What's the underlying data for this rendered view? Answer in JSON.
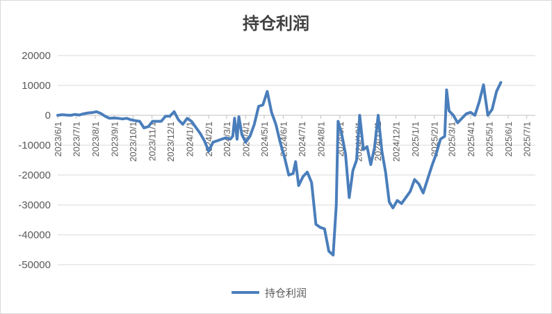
{
  "chart_data": {
    "type": "line",
    "title": "持仓利润",
    "xlabel": "",
    "ylabel": "",
    "ylim": [
      -50000,
      20000
    ],
    "yticks": [
      20000,
      10000,
      0,
      -10000,
      -20000,
      -30000,
      -40000,
      -50000
    ],
    "ytick_labels": [
      "20000",
      "10000",
      "0",
      "-10000",
      "-20000",
      "-30000",
      "-40000",
      "-50000"
    ],
    "xtick_labels": [
      "2023/6/1",
      "2023/7/1",
      "2023/8/1",
      "2023/9/1",
      "2023/10/1",
      "2023/11/1",
      "2023/12/1",
      "2024/1/1",
      "2024/2/1",
      "2024/3/1",
      "2024/4/1",
      "2024/5/1",
      "2024/6/1",
      "2024/7/1",
      "2024/8/1",
      "2024/9/1",
      "2024/10/1",
      "2024/11/1",
      "2024/12/1",
      "2025/1/1",
      "2025/2/1",
      "2025/3/1",
      "2025/4/1",
      "2025/5/1",
      "2025/6/1",
      "2025/7/1"
    ],
    "x_range": [
      "2023/6/1",
      "2025/7/15"
    ],
    "grid": "horizontal",
    "legend_position": "bottom",
    "series": [
      {
        "name": "持仓利润",
        "color": "#4a7ebb",
        "points": [
          [
            "2023/6/1",
            0
          ],
          [
            "2023/6/8",
            200
          ],
          [
            "2023/6/15",
            100
          ],
          [
            "2023/6/22",
            0
          ],
          [
            "2023/6/29",
            300
          ],
          [
            "2023/7/6",
            100
          ],
          [
            "2023/7/13",
            500
          ],
          [
            "2023/7/20",
            800
          ],
          [
            "2023/7/27",
            900
          ],
          [
            "2023/8/3",
            1200
          ],
          [
            "2023/8/10",
            600
          ],
          [
            "2023/8/17",
            -300
          ],
          [
            "2023/8/24",
            -1000
          ],
          [
            "2023/8/31",
            -900
          ],
          [
            "2023/9/7",
            -1000
          ],
          [
            "2023/9/14",
            -1200
          ],
          [
            "2023/9/21",
            -1000
          ],
          [
            "2023/9/28",
            -1500
          ],
          [
            "2023/10/5",
            -1800
          ],
          [
            "2023/10/12",
            -2000
          ],
          [
            "2023/10/19",
            -4200
          ],
          [
            "2023/10/26",
            -3800
          ],
          [
            "2023/11/2",
            -2000
          ],
          [
            "2023/11/9",
            -2000
          ],
          [
            "2023/11/16",
            -2000
          ],
          [
            "2023/11/23",
            -300
          ],
          [
            "2023/11/30",
            -300
          ],
          [
            "2023/12/7",
            1200
          ],
          [
            "2023/12/14",
            -1500
          ],
          [
            "2023/12/21",
            -3000
          ],
          [
            "2023/12/28",
            -1000
          ],
          [
            "2024/1/4",
            -2000
          ],
          [
            "2024/1/11",
            -4000
          ],
          [
            "2024/1/18",
            -6000
          ],
          [
            "2024/1/25",
            -8500
          ],
          [
            "2024/2/1",
            -12000
          ],
          [
            "2024/2/8",
            -9000
          ],
          [
            "2024/2/15",
            -8500
          ],
          [
            "2024/2/22",
            -8000
          ],
          [
            "2024/2/29",
            -7500
          ],
          [
            "2024/3/7",
            -8000
          ],
          [
            "2024/3/11",
            -7000
          ],
          [
            "2024/3/14",
            -1000
          ],
          [
            "2024/3/18",
            -8000
          ],
          [
            "2024/3/21",
            -500
          ],
          [
            "2024/3/26",
            -6500
          ],
          [
            "2024/4/1",
            -9000
          ],
          [
            "2024/4/8",
            -7000
          ],
          [
            "2024/4/15",
            -3000
          ],
          [
            "2024/4/22",
            3000
          ],
          [
            "2024/4/29",
            3500
          ],
          [
            "2024/5/6",
            8000
          ],
          [
            "2024/5/13",
            1000
          ],
          [
            "2024/5/20",
            -3000
          ],
          [
            "2024/5/27",
            -9000
          ],
          [
            "2024/6/3",
            -14000
          ],
          [
            "2024/6/10",
            -20000
          ],
          [
            "2024/6/17",
            -19500
          ],
          [
            "2024/6/21",
            -15500
          ],
          [
            "2024/6/26",
            -23500
          ],
          [
            "2024/7/3",
            -20500
          ],
          [
            "2024/7/10",
            -19000
          ],
          [
            "2024/7/17",
            -22500
          ],
          [
            "2024/7/24",
            -36500
          ],
          [
            "2024/7/31",
            -37500
          ],
          [
            "2024/8/7",
            -38000
          ],
          [
            "2024/8/14",
            -45500
          ],
          [
            "2024/8/21",
            -46800
          ],
          [
            "2024/8/26",
            -30000
          ],
          [
            "2024/8/29",
            -2000
          ],
          [
            "2024/9/4",
            -6500
          ],
          [
            "2024/9/10",
            -13000
          ],
          [
            "2024/9/16",
            -27500
          ],
          [
            "2024/9/22",
            -18500
          ],
          [
            "2024/9/28",
            -15000
          ],
          [
            "2024/10/3",
            0
          ],
          [
            "2024/10/9",
            -11500
          ],
          [
            "2024/10/15",
            -10500
          ],
          [
            "2024/10/21",
            -16500
          ],
          [
            "2024/10/27",
            -11000
          ],
          [
            "2024/11/2",
            0
          ],
          [
            "2024/11/8",
            -12000
          ],
          [
            "2024/11/14",
            -19000
          ],
          [
            "2024/11/20",
            -29000
          ],
          [
            "2024/11/26",
            -31000
          ],
          [
            "2024/12/3",
            -28500
          ],
          [
            "2024/12/10",
            -29500
          ],
          [
            "2024/12/17",
            -27500
          ],
          [
            "2024/12/24",
            -25500
          ],
          [
            "2024/12/31",
            -21500
          ],
          [
            "2025/1/7",
            -23000
          ],
          [
            "2025/1/14",
            -26000
          ],
          [
            "2025/1/21",
            -21500
          ],
          [
            "2025/1/28",
            -17000
          ],
          [
            "2025/2/4",
            -13000
          ],
          [
            "2025/2/11",
            -8000
          ],
          [
            "2025/2/18",
            -7000
          ],
          [
            "2025/2/21",
            8500
          ],
          [
            "2025/2/25",
            1500
          ],
          [
            "2025/3/4",
            0
          ],
          [
            "2025/3/11",
            -2500
          ],
          [
            "2025/3/18",
            -1000
          ],
          [
            "2025/3/25",
            500
          ],
          [
            "2025/4/1",
            1000
          ],
          [
            "2025/4/8",
            0
          ],
          [
            "2025/4/15",
            4500
          ],
          [
            "2025/4/22",
            10200
          ],
          [
            "2025/4/29",
            0
          ],
          [
            "2025/5/6",
            2000
          ],
          [
            "2025/5/13",
            8000
          ],
          [
            "2025/5/20",
            11000
          ]
        ]
      }
    ]
  }
}
